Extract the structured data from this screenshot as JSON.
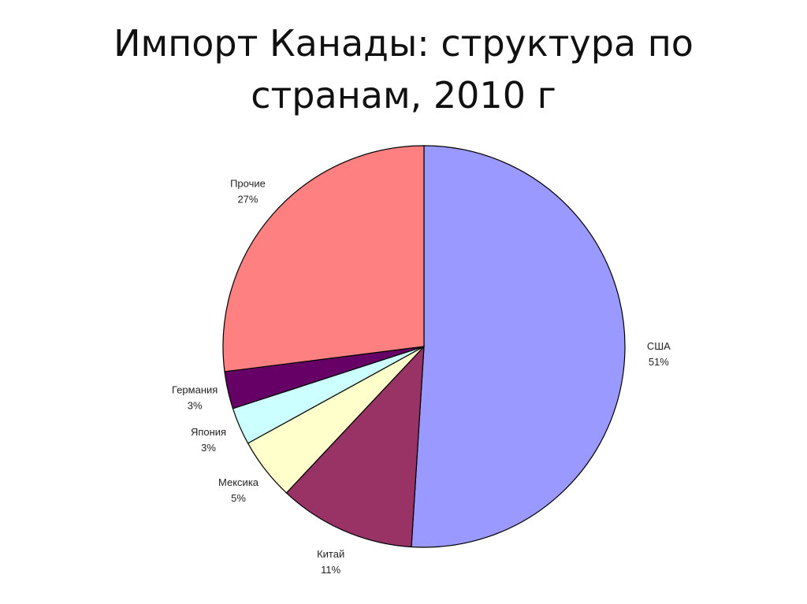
{
  "chart_data": {
    "type": "pie",
    "title": "Импорт Канады: структура по странам, 2010 г",
    "categories": [
      "США",
      "Китай",
      "Мексика",
      "Япония",
      "Германия",
      "Прочие"
    ],
    "values": [
      51,
      11,
      5,
      3,
      3,
      27
    ],
    "value_labels": [
      "51%",
      "11%",
      "5%",
      "3%",
      "3%",
      "27%"
    ],
    "colors": [
      "#9999ff",
      "#993366",
      "#ffffcc",
      "#ccffff",
      "#660066",
      "#ff8080"
    ]
  }
}
